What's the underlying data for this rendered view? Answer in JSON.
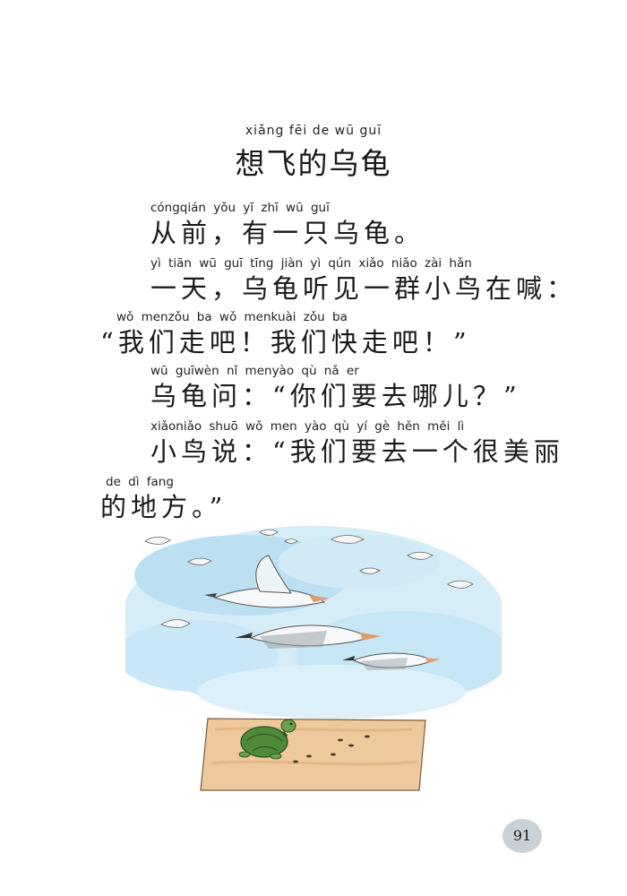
{
  "title": {
    "pinyin": "xiǎng fēi de wū guī",
    "text": "想飞的乌龟"
  },
  "lines": [
    {
      "pinyin": "cóngqián      yǒu  yī   zhī  wū  guī",
      "text": "从前，有一只乌龟。"
    },
    {
      "pinyin": "yì  tiān        wū  guī  tīng jiàn   yì   qún xiǎo niǎo zài  hǎn",
      "text": "一天，乌龟听见一群小鸟在喊："
    },
    {
      "pinyin": "wǒ menzǒu ba       wǒ menkuài zǒu ba",
      "text": "“我们走吧！我们快走吧！”"
    },
    {
      "pinyin": "wū guīwèn              nǐ menyào qù  nǎ  er",
      "text": "乌龟问：“你们要去哪儿？”"
    },
    {
      "pinyin": "xiǎoniǎo shuō              wǒ men yào  qù   yí   gè  hěn měi   lì",
      "text": "小鸟说：“我们要去一个很美丽"
    },
    {
      "pinyin": "de  dì fang",
      "text": "的地方。”"
    }
  ],
  "illustration": {
    "description_icon": "birds-and-turtle-illustration",
    "sky_color": "#cde6f4",
    "ground_color": "#eec9a0",
    "turtle_color": "#4e8a3a"
  },
  "page_number": "91"
}
